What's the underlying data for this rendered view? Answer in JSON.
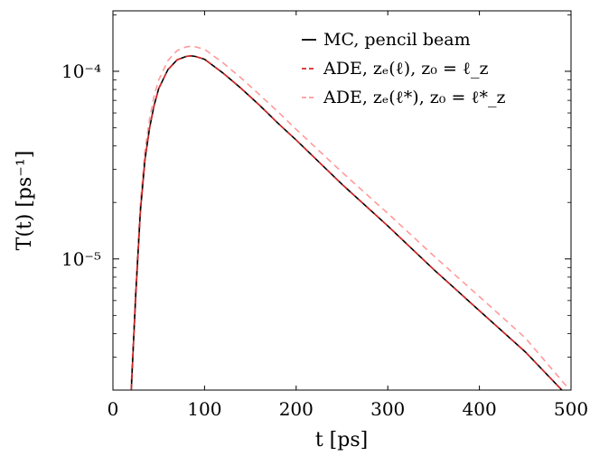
{
  "chart_data": {
    "type": "line",
    "xlabel": "t [ps]",
    "ylabel": "T(t) [ps⁻¹]",
    "xlim": [
      0,
      500
    ],
    "ylim": [
      2e-06,
      0.00021
    ],
    "y_scale": "log",
    "grid": false,
    "legend_position": "top-right",
    "x_ticks": [
      0,
      100,
      200,
      300,
      400,
      500
    ],
    "x_tick_labels": [
      "0",
      "100",
      "200",
      "300",
      "400",
      "500"
    ],
    "y_ticks": [
      1e-05,
      0.0001
    ],
    "y_tick_labels": [
      "10⁻⁵",
      "10⁻⁴"
    ],
    "series": [
      {
        "name": "MC, pencil beam",
        "color": "#000000",
        "dash": "solid",
        "x": [
          20,
          25,
          30,
          35,
          40,
          45,
          50,
          60,
          70,
          80,
          85,
          90,
          100,
          120,
          140,
          160,
          180,
          200,
          250,
          300,
          350,
          400,
          450,
          490
        ],
        "y": [
          2e-06,
          6.5e-06,
          1.8e-05,
          3.4e-05,
          5e-05,
          6.6e-05,
          8.1e-05,
          0.000102,
          0.000115,
          0.00012,
          0.000121,
          0.00012,
          0.000116,
          9.8e-05,
          8.1e-05,
          6.6e-05,
          5.3e-05,
          4.3e-05,
          2.5e-05,
          1.5e-05,
          8.8e-06,
          5.3e-06,
          3.2e-06,
          2e-06
        ]
      },
      {
        "name": "ADE, zₑ(ℓ), z₀ = ℓ_z",
        "color": "#d62728",
        "dash": "dashed",
        "x": [
          20,
          25,
          30,
          35,
          40,
          45,
          50,
          60,
          70,
          80,
          85,
          90,
          100,
          120,
          140,
          160,
          180,
          200,
          250,
          300,
          350,
          400,
          450,
          490
        ],
        "y": [
          2e-06,
          6.5e-06,
          1.8e-05,
          3.4e-05,
          5e-05,
          6.6e-05,
          8.1e-05,
          0.000102,
          0.000115,
          0.00012,
          0.000121,
          0.00012,
          0.000116,
          9.8e-05,
          8.1e-05,
          6.6e-05,
          5.3e-05,
          4.3e-05,
          2.5e-05,
          1.5e-05,
          8.8e-06,
          5.3e-06,
          3.2e-06,
          2e-06
        ]
      },
      {
        "name": "ADE, zₑ(ℓ*), z₀ = ℓ*_z",
        "color": "#ff9a9a",
        "dash": "dashed",
        "x": [
          20,
          25,
          30,
          35,
          40,
          45,
          50,
          60,
          70,
          80,
          85,
          90,
          100,
          120,
          140,
          160,
          180,
          200,
          250,
          300,
          350,
          400,
          450,
          495
        ],
        "y": [
          2.2e-06,
          7.2e-06,
          2e-05,
          3.8e-05,
          5.6e-05,
          7.4e-05,
          9e-05,
          0.000114,
          0.000129,
          0.000135,
          0.000136,
          0.000135,
          0.000131,
          0.000111,
          9.2e-05,
          7.5e-05,
          6.1e-05,
          4.9e-05,
          2.9e-05,
          1.75e-05,
          1.04e-05,
          6.3e-06,
          3.8e-06,
          2.1e-06
        ]
      }
    ]
  }
}
